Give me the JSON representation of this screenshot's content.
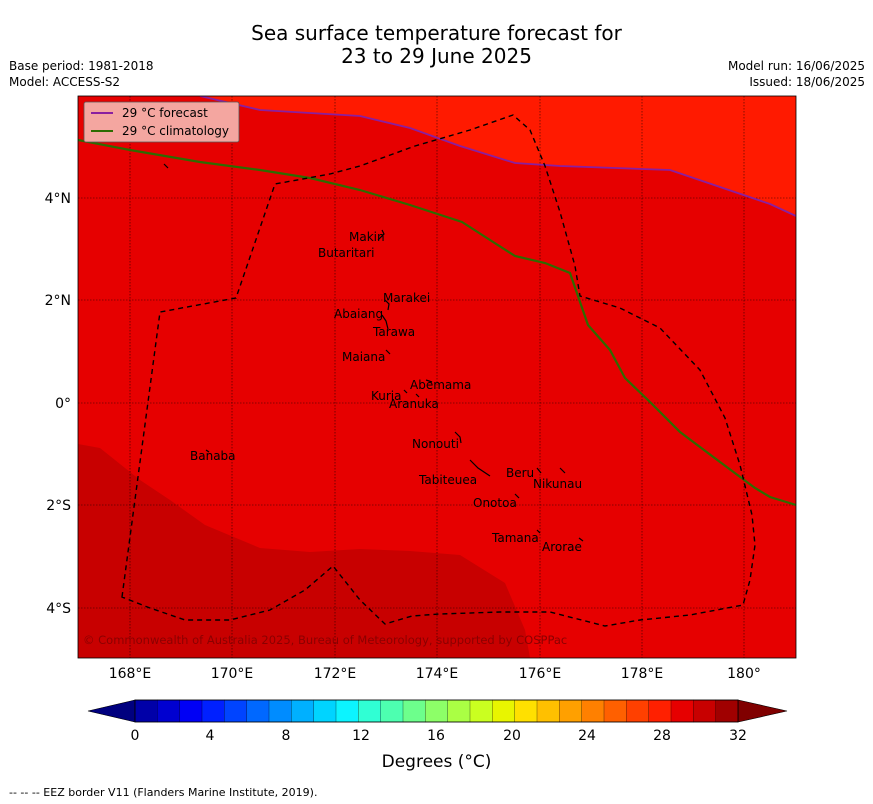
{
  "title_line1": "Sea surface temperature forecast for",
  "title_line2": "23 to 29 June 2025",
  "base_period": "Base period: 1981-2018",
  "model": "Model: ACCESS-S2",
  "model_run": "Model run: 16/06/2025",
  "issued": "Issued: 18/06/2025",
  "legend": {
    "forecast": "29 °C  forecast",
    "climatology": "29 °C  climatology"
  },
  "lat_ticks": [
    "4°N",
    "2°N",
    "0°",
    "2°S",
    "4°S"
  ],
  "lon_ticks": [
    "168°E",
    "170°E",
    "172°E",
    "174°E",
    "176°E",
    "178°E",
    "180°"
  ],
  "places": [
    "Makin",
    "Butaritari",
    "Marakei",
    "Abaiang",
    "Tarawa",
    "Maiana",
    "Abemama",
    "Kuria",
    "Aranuka",
    "Nonouti",
    "Banaba",
    "Beru",
    "Nikunau",
    "Tabiteuea",
    "Onotoa",
    "Tamana",
    "Arorae"
  ],
  "copyright": "© Commonwealth of Australia 2025, Bureau of Meteorology, supported by COSPPac",
  "colorbar": {
    "ticks": [
      "0",
      "4",
      "8",
      "12",
      "16",
      "20",
      "24",
      "28",
      "32"
    ],
    "label": "Degrees (°C)",
    "colors": [
      "#00007f",
      "#0000a8",
      "#0000d0",
      "#0000f5",
      "#0020ff",
      "#0044ff",
      "#0068ff",
      "#008cff",
      "#00b0ff",
      "#00d4ff",
      "#0cf4ff",
      "#30ffd4",
      "#4dffb0",
      "#6dff8c",
      "#8dff68",
      "#aaff44",
      "#caff20",
      "#e8f500",
      "#ffe000",
      "#ffc000",
      "#ffa000",
      "#ff8000",
      "#ff6000",
      "#ff4000",
      "#ff2000",
      "#e60000",
      "#c80000",
      "#a00000",
      "#800000"
    ]
  },
  "eez_note": "--  --  -- EEZ border V11 (Flanders Marine Institute, 2019).",
  "colors": {
    "forecast_line": "#8a1fa0",
    "climatology_line": "#2e6b00",
    "ocean_high": "#ff1a00",
    "ocean_mid": "#e60000",
    "ocean_low": "#c80000"
  }
}
